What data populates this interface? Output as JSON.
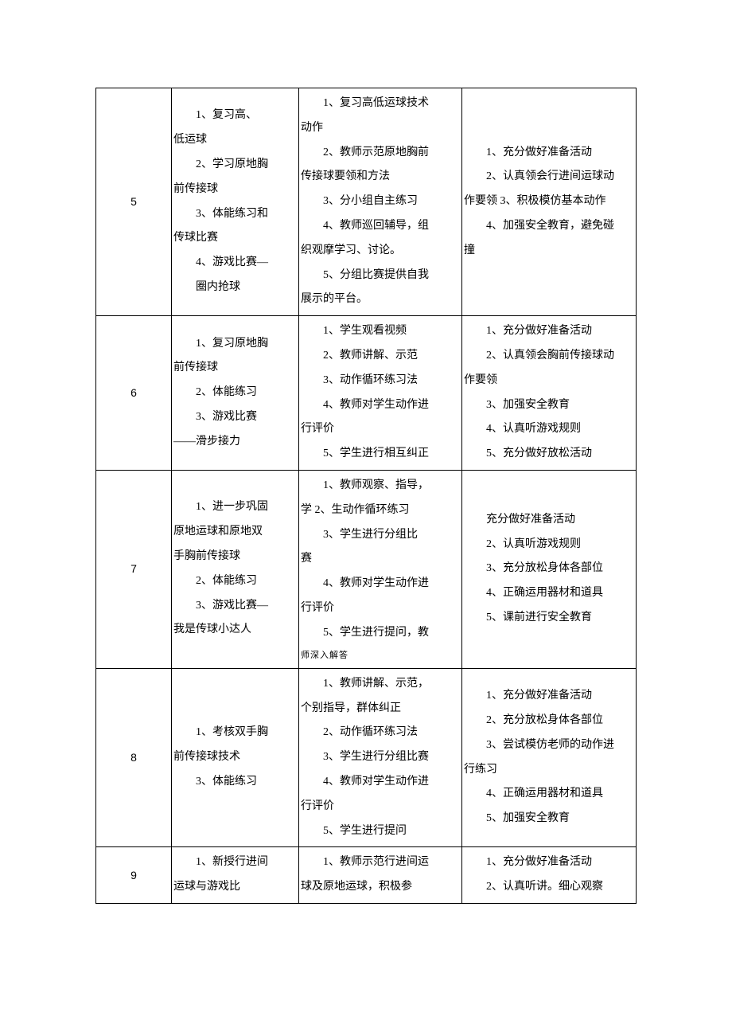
{
  "rows": [
    {
      "num": "5",
      "col_a": [
        {
          "cls": "indent",
          "t": "1、复习高、"
        },
        {
          "cls": "noindent",
          "t": "低运球"
        },
        {
          "cls": "indent",
          "t": "2、学习原地胸"
        },
        {
          "cls": "noindent",
          "t": "前传接球"
        },
        {
          "cls": "indent",
          "t": "3、体能练习和"
        },
        {
          "cls": "noindent",
          "t": "传球比赛"
        },
        {
          "cls": "indent",
          "t": "4、游戏比赛—"
        },
        {
          "cls": "indent",
          "t": "圈内抢球"
        }
      ],
      "col_b": [
        {
          "cls": "indent",
          "t": "1、复习高低运球技术"
        },
        {
          "cls": "noindent",
          "t": "动作"
        },
        {
          "cls": "indent",
          "t": "2、教师示范原地胸前"
        },
        {
          "cls": "noindent",
          "t": "传接球要领和方法"
        },
        {
          "cls": "indent",
          "t": "3、分小组自主练习"
        },
        {
          "cls": "indent",
          "t": "4、教师巡回辅导，组"
        },
        {
          "cls": "noindent",
          "t": "织观摩学习、讨论。"
        },
        {
          "cls": "indent",
          "t": "5、分组比赛提供自我"
        },
        {
          "cls": "noindent",
          "t": "展示的平台。"
        }
      ],
      "col_c": [
        {
          "cls": "indent",
          "t": "1、充分做好准备活动"
        },
        {
          "cls": "indent",
          "t": "2、认真领会行进间运球动"
        },
        {
          "cls": "noindent",
          "t": "作要领 3、积极模仿基本动作"
        },
        {
          "cls": "indent",
          "t": "4、加强安全教育，避免碰"
        },
        {
          "cls": "noindent",
          "t": "撞"
        }
      ]
    },
    {
      "num": "6",
      "col_a": [
        {
          "cls": "indent",
          "t": "1、复习原地胸"
        },
        {
          "cls": "noindent",
          "t": "前传接球"
        },
        {
          "cls": "indent",
          "t": "2、体能练习"
        },
        {
          "cls": "indent",
          "t": "3、游戏比赛"
        },
        {
          "cls": "noindent",
          "t": "——滑步接力"
        }
      ],
      "col_b": [
        {
          "cls": "indent",
          "t": "1、学生观看视频"
        },
        {
          "cls": "indent",
          "t": "2、教师讲解、示范"
        },
        {
          "cls": "indent",
          "t": "3、动作循环练习法"
        },
        {
          "cls": "indent",
          "t": "4、教师对学生动作进"
        },
        {
          "cls": "noindent",
          "t": "行评价"
        },
        {
          "cls": "indent",
          "t": "5、学生进行相互纠正"
        }
      ],
      "col_c": [
        {
          "cls": "indent",
          "t": "1、充分做好准备活动"
        },
        {
          "cls": "indent",
          "t": "2、认真领会胸前传接球动"
        },
        {
          "cls": "noindent",
          "t": "作要领"
        },
        {
          "cls": "indent",
          "t": "3、加强安全教育"
        },
        {
          "cls": "indent",
          "t": "4、认真听游戏规则"
        },
        {
          "cls": "indent",
          "t": "5、充分做好放松活动"
        }
      ]
    },
    {
      "num": "7",
      "col_a": [
        {
          "cls": "indent",
          "t": "1、进一步巩固"
        },
        {
          "cls": "noindent",
          "t": "原地运球和原地双"
        },
        {
          "cls": "noindent",
          "t": "手胸前传接球"
        },
        {
          "cls": "indent",
          "t": "2、体能练习"
        },
        {
          "cls": "indent",
          "t": "3、游戏比赛—"
        },
        {
          "cls": "noindent",
          "t": "我是传球小达人"
        }
      ],
      "col_b": [
        {
          "cls": "indent",
          "t": "1、教师观察、指导，"
        },
        {
          "cls": "noindent",
          "t": "学 2、生动作循环练习"
        },
        {
          "cls": "indent",
          "t": "3、学生进行分组比"
        },
        {
          "cls": "noindent",
          "t": "赛"
        },
        {
          "cls": "indent",
          "t": "4、教师对学生动作进"
        },
        {
          "cls": "noindent",
          "t": "行评价"
        },
        {
          "cls": "indent",
          "t": "5、学生进行提问，教"
        },
        {
          "cls": "noindent bottom-fade",
          "t": "师深入解答"
        }
      ],
      "col_c": [
        {
          "cls": "indent",
          "t": "充分做好准备活动"
        },
        {
          "cls": "indent",
          "t": "2、认真听游戏规则"
        },
        {
          "cls": "indent",
          "t": "3、充分放松身体各部位"
        },
        {
          "cls": "indent",
          "t": "4、正确运用器材和道具"
        },
        {
          "cls": "indent",
          "t": "5、课前进行安全教育"
        }
      ]
    },
    {
      "num": "8",
      "col_a": [
        {
          "cls": "indent",
          "t": "1、考核双手胸"
        },
        {
          "cls": "noindent",
          "t": "前传接球技术"
        },
        {
          "cls": "indent",
          "t": "3、体能练习"
        }
      ],
      "col_b": [
        {
          "cls": "indent",
          "t": "1、教师讲解、示范，"
        },
        {
          "cls": "noindent",
          "t": "个别指导，群体纠正"
        },
        {
          "cls": "indent",
          "t": "2、动作循环练习法"
        },
        {
          "cls": "indent",
          "t": "3、学生进行分组比赛"
        },
        {
          "cls": "indent",
          "t": "4、教师对学生动作进"
        },
        {
          "cls": "noindent",
          "t": "行评价"
        },
        {
          "cls": "indent",
          "t": "5、学生进行提问"
        }
      ],
      "col_c": [
        {
          "cls": "indent",
          "t": "1、充分做好准备活动"
        },
        {
          "cls": "indent",
          "t": "2、充分放松身体各部位"
        },
        {
          "cls": "indent",
          "t": "3、尝试模仿老师的动作进"
        },
        {
          "cls": "noindent",
          "t": "行练习"
        },
        {
          "cls": "indent",
          "t": "4、正确运用器材和道具"
        },
        {
          "cls": "indent",
          "t": "5、加强安全教育"
        }
      ]
    },
    {
      "num": "9",
      "col_a": [
        {
          "cls": "indent",
          "t": "1、新授行进间"
        },
        {
          "cls": "noindent",
          "t": "运球与游戏比"
        }
      ],
      "col_b": [
        {
          "cls": "indent",
          "t": "1、教师示范行进间运"
        },
        {
          "cls": "noindent",
          "t": "球及原地运球，积极参"
        }
      ],
      "col_c": [
        {
          "cls": "indent",
          "t": "1、充分做好准备活动"
        },
        {
          "cls": "indent",
          "t": "2、认真听讲。细心观察"
        }
      ]
    }
  ]
}
